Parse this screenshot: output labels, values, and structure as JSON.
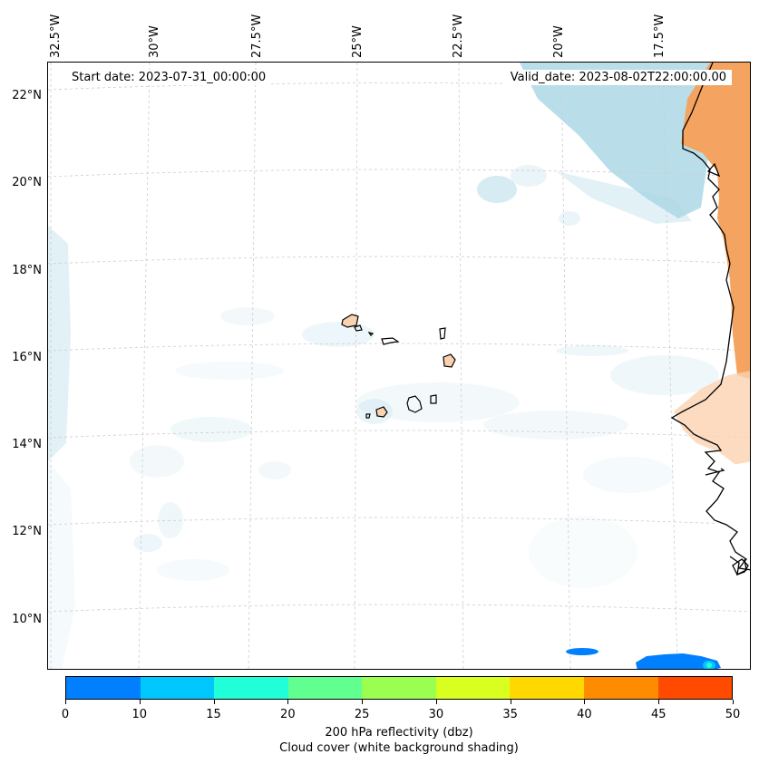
{
  "header": {
    "start_date": "Start date: 2023-07-31_00:00:00",
    "valid_date": "Valid_date: 2023-08-02T22:00:00.00"
  },
  "axes": {
    "lon_labels": [
      "32.5°W",
      "30°W",
      "27.5°W",
      "25°W",
      "22.5°W",
      "20°W",
      "17.5°W"
    ],
    "lat_labels": [
      "22°N",
      "20°N",
      "18°N",
      "16°N",
      "14°N",
      "12°N",
      "10°N"
    ]
  },
  "colorbar": {
    "ticks": [
      "0",
      "10",
      "15",
      "20",
      "25",
      "30",
      "35",
      "40",
      "45",
      "50"
    ],
    "colors": [
      "#0080ff",
      "#00c8ff",
      "#20ffd8",
      "#60ff90",
      "#9aff50",
      "#d8ff20",
      "#ffd800",
      "#ff8c00",
      "#ff4a00"
    ],
    "label": "200 hPa reflectivity (dbz)",
    "sublabel": "Cloud cover (white background shading)"
  }
}
